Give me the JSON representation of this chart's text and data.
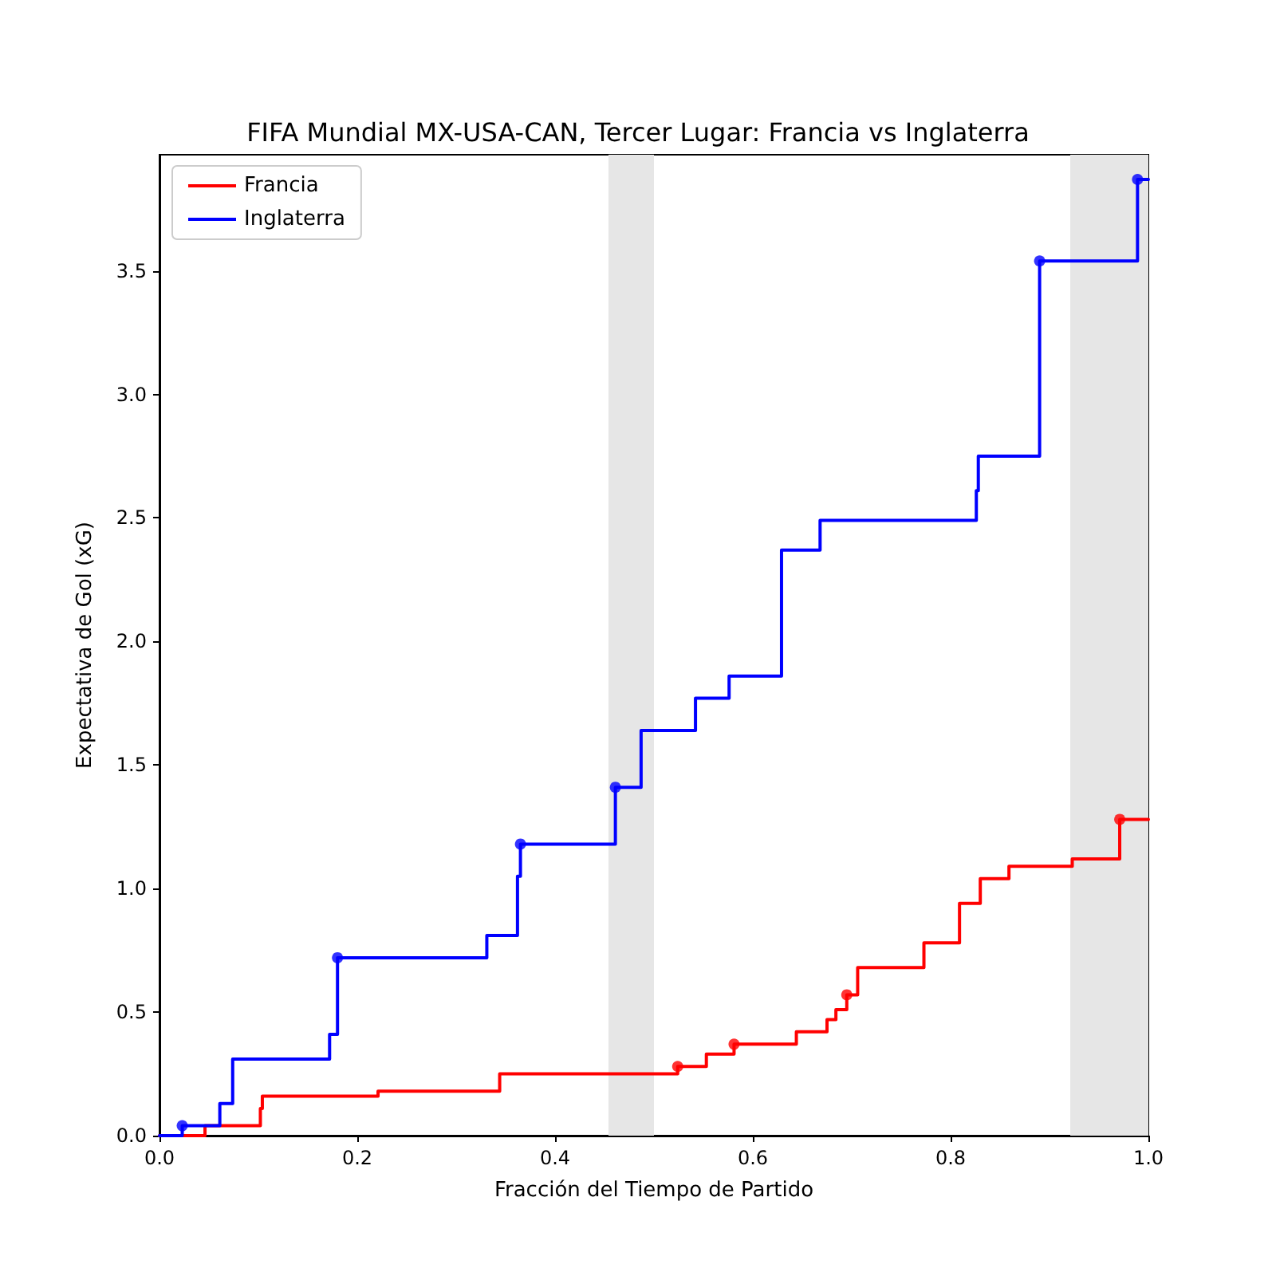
{
  "chart_data": {
    "type": "step",
    "title": "FIFA Mundial MX-USA-CAN, Tercer Lugar: Francia vs Inglaterra",
    "xlabel": "Fracción del Tiempo de Partido",
    "ylabel": "Expectativa de Gol (xG)",
    "series": [
      {
        "name": "Francia",
        "color": "#ff0000",
        "marker": "none",
        "x": [
          0,
          0.046,
          0.102,
          0.104,
          0.221,
          0.344,
          0.524,
          0.553,
          0.581,
          0.644,
          0.675,
          0.684,
          0.695,
          0.706,
          0.773,
          0.809,
          0.83,
          0.859,
          0.923,
          0.971,
          1.0
        ],
        "values": [
          0,
          0.04,
          0.11,
          0.16,
          0.18,
          0.25,
          0.28,
          0.33,
          0.37,
          0.42,
          0.47,
          0.51,
          0.57,
          0.68,
          0.78,
          0.94,
          1.04,
          1.09,
          1.12,
          1.28,
          1.28
        ]
      },
      {
        "name": "Inglaterra",
        "color": "#0000ff",
        "marker": "none",
        "x": [
          0,
          0.023,
          0.061,
          0.074,
          0.172,
          0.18,
          0.331,
          0.362,
          0.365,
          0.461,
          0.487,
          0.542,
          0.576,
          0.629,
          0.668,
          0.826,
          0.828,
          0.89,
          0.989,
          1.0
        ],
        "values": [
          0,
          0.04,
          0.13,
          0.31,
          0.41,
          0.72,
          0.81,
          1.05,
          1.18,
          1.41,
          1.64,
          1.77,
          1.86,
          2.37,
          2.49,
          2.61,
          2.75,
          3.54,
          3.87,
          3.87
        ]
      },
      {
        "type": "scatter",
        "color": "#ff0000",
        "marker": "circle",
        "x": [
          0.524,
          0.581,
          0.695,
          0.971
        ],
        "values": [
          0.28,
          0.37,
          0.57,
          1.28
        ]
      },
      {
        "type": "scatter",
        "color": "#0000ff",
        "marker": "circle",
        "x": [
          0.023,
          0.18,
          0.365,
          0.461,
          0.89,
          0.989
        ],
        "values": [
          0.04,
          0.72,
          1.18,
          1.41,
          3.54,
          3.87
        ]
      }
    ],
    "xlim": [
      0,
      1.0
    ],
    "xticks": [
      {
        "value": 0,
        "label": "0.0"
      },
      0.2,
      0.4,
      0.6,
      0.8,
      {
        "value": 1.0,
        "label": "1.0"
      }
    ],
    "ylim": [
      0,
      3.97
    ],
    "yticks": [
      {
        "value": 0,
        "label": "0.0"
      },
      0.5,
      {
        "value": 1.0,
        "label": "1.0"
      },
      1.5,
      {
        "value": 2.0,
        "label": "2.0"
      },
      2.5,
      {
        "value": 3.0,
        "label": "3.0"
      },
      3.5
    ],
    "bands": [
      {
        "axis": "x",
        "from": 0.454,
        "to": 0.5,
        "color": "#e6e6e6"
      },
      {
        "axis": "x",
        "from": 0.921,
        "to": 1.0,
        "color": "#e6e6e6"
      }
    ],
    "grid": false,
    "legend": "top left",
    "line_style": "solid"
  }
}
